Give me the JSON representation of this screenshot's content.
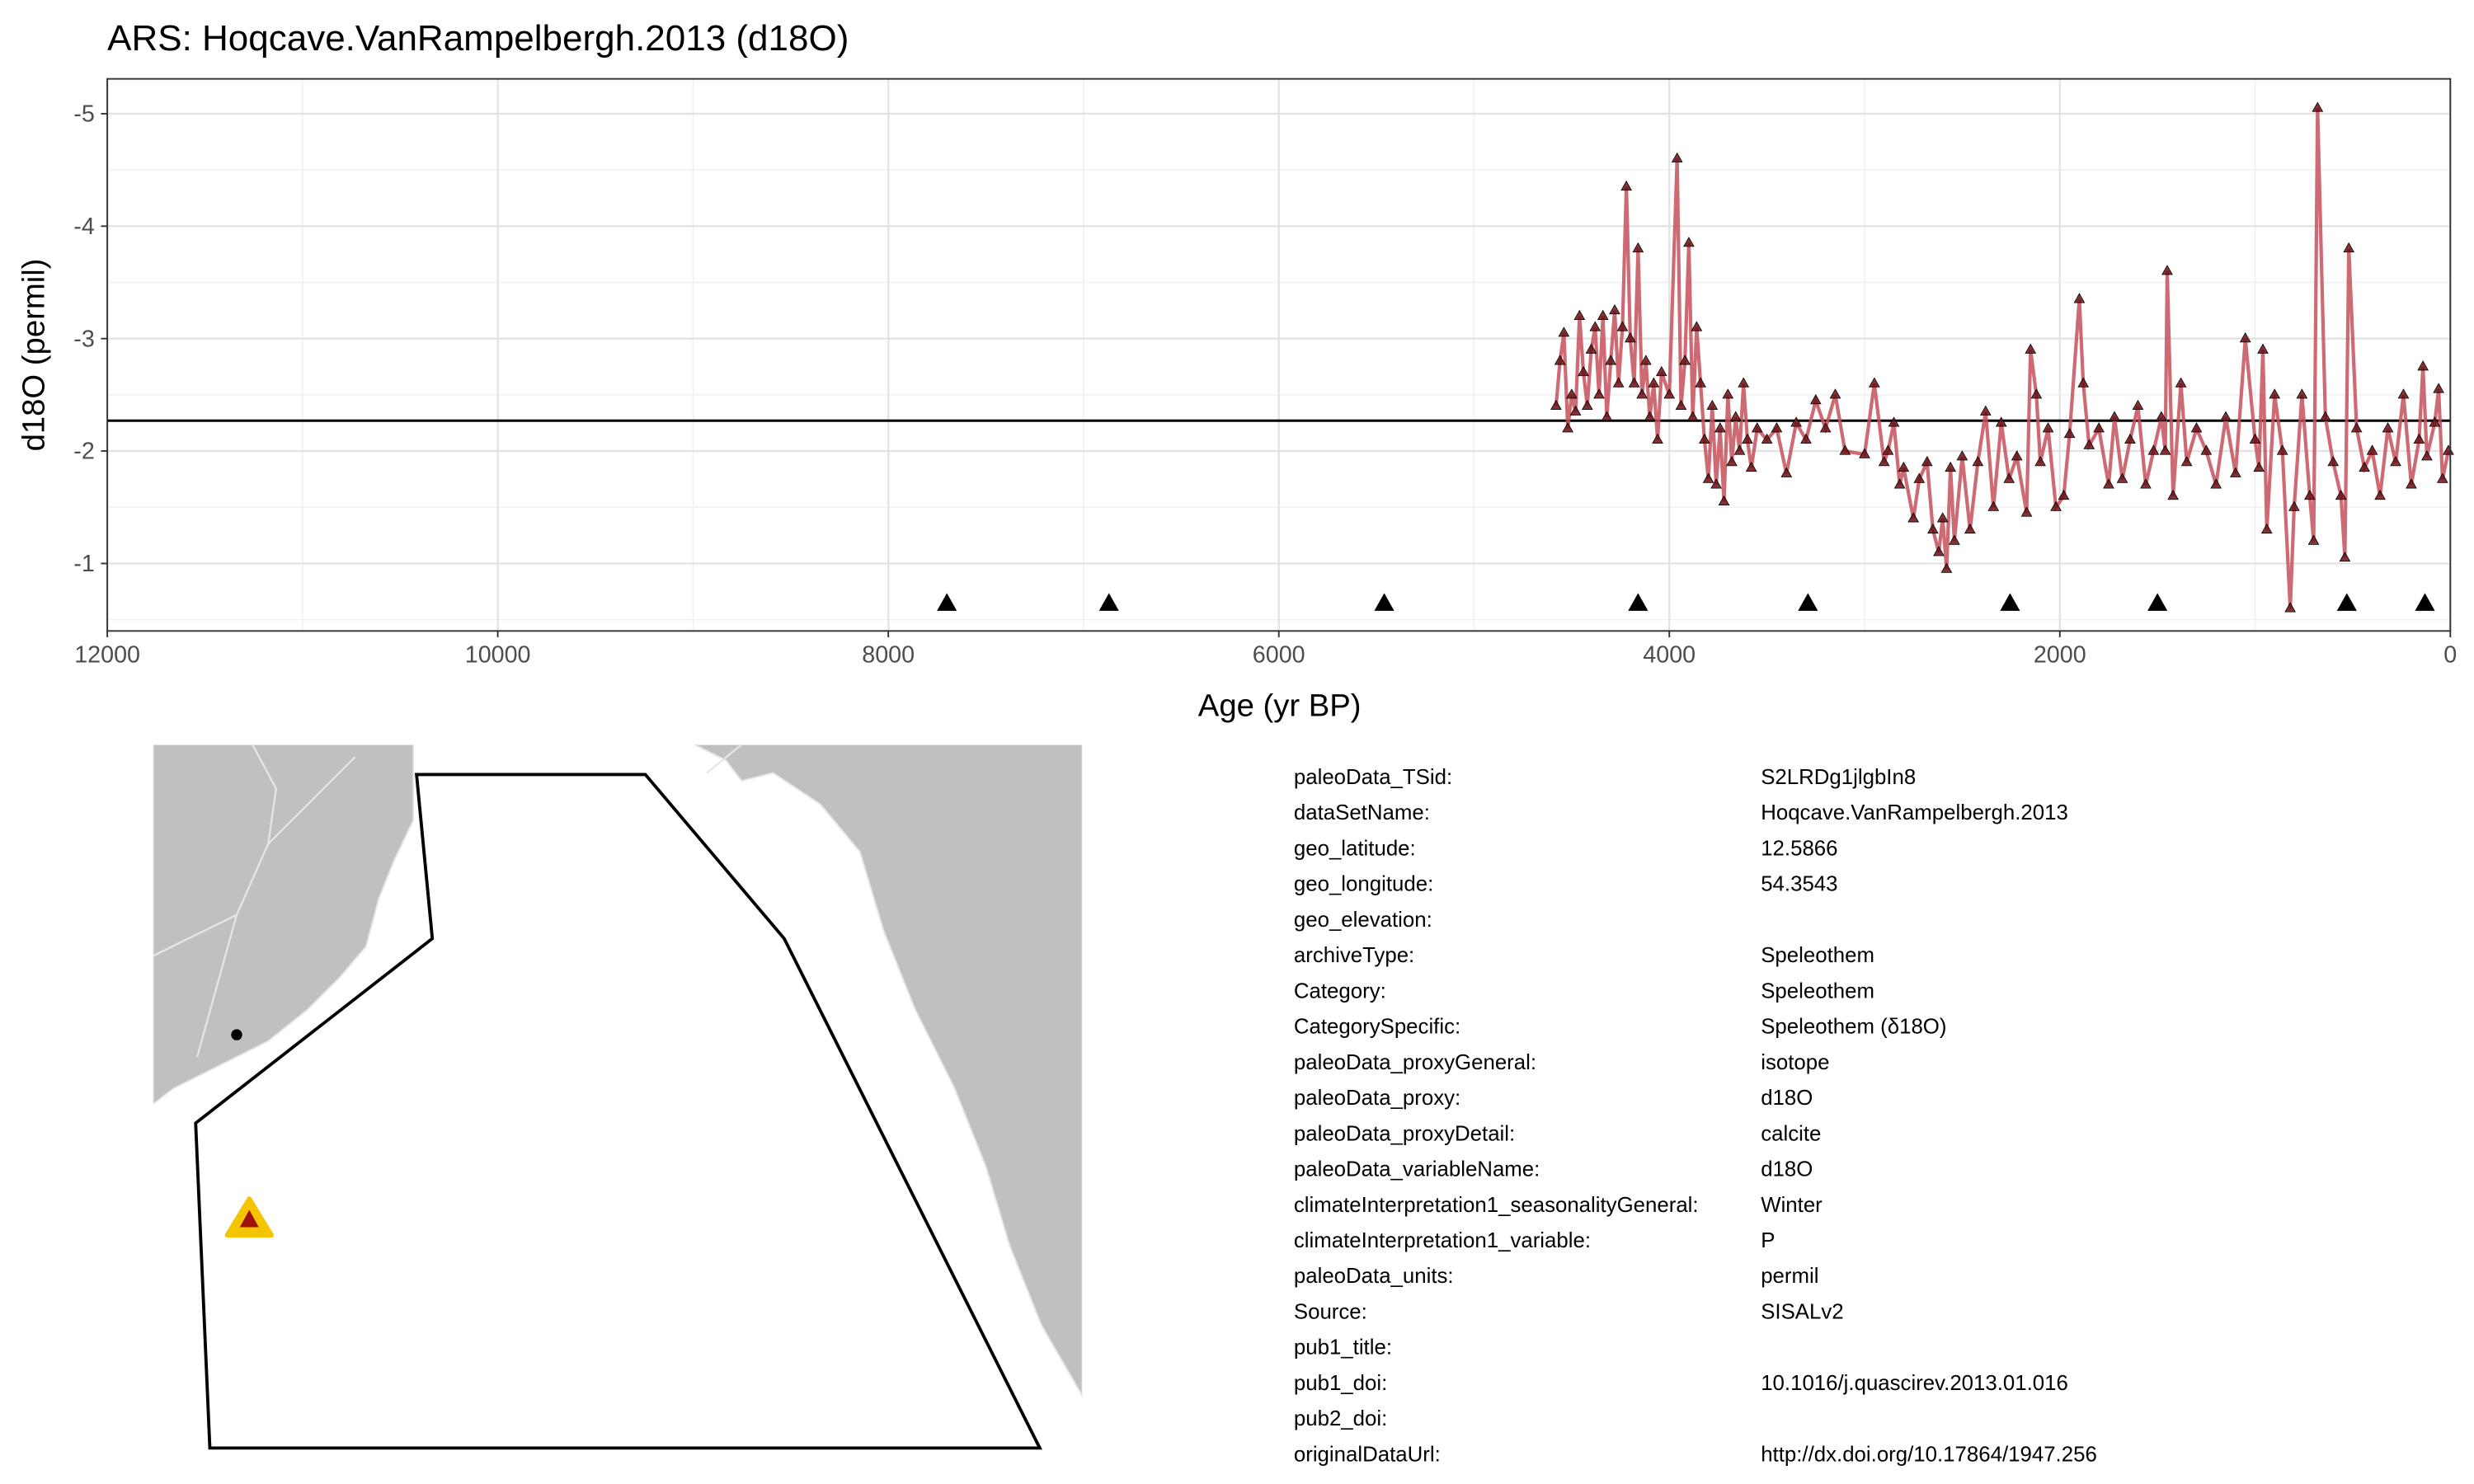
{
  "chart_data": {
    "type": "line",
    "title": "ARS: Hoqcave.VanRampelbergh.2013 (d18O)",
    "xlabel": "Age (yr BP)",
    "ylabel": "d18O (permil)",
    "x": [
      4580,
      4560,
      4540,
      4520,
      4500,
      4480,
      4460,
      4440,
      4420,
      4400,
      4380,
      4360,
      4340,
      4320,
      4300,
      4280,
      4260,
      4240,
      4220,
      4200,
      4180,
      4160,
      4140,
      4120,
      4100,
      4080,
      4060,
      4040,
      4000,
      3960,
      3940,
      3920,
      3900,
      3880,
      3860,
      3840,
      3820,
      3800,
      3780,
      3760,
      3740,
      3720,
      3700,
      3680,
      3660,
      3640,
      3620,
      3600,
      3580,
      3550,
      3500,
      3450,
      3400,
      3350,
      3300,
      3250,
      3200,
      3150,
      3100,
      3000,
      2950,
      2900,
      2880,
      2850,
      2820,
      2800,
      2750,
      2720,
      2680,
      2650,
      2620,
      2600,
      2580,
      2560,
      2540,
      2500,
      2460,
      2420,
      2380,
      2340,
      2300,
      2260,
      2220,
      2170,
      2150,
      2120,
      2100,
      2060,
      2020,
      1980,
      1950,
      1900,
      1880,
      1850,
      1800,
      1750,
      1720,
      1680,
      1640,
      1600,
      1560,
      1520,
      1480,
      1460,
      1450,
      1420,
      1380,
      1350,
      1300,
      1250,
      1200,
      1150,
      1100,
      1050,
      1000,
      980,
      960,
      940,
      900,
      860,
      820,
      800,
      760,
      720,
      700,
      680,
      640,
      600,
      560,
      540,
      520,
      480,
      440,
      400,
      360,
      320,
      280,
      240,
      200,
      160,
      140,
      120,
      80,
      60,
      40,
      10
    ],
    "values": [
      -2.4,
      -2.8,
      -3.05,
      -2.2,
      -2.5,
      -2.35,
      -3.2,
      -2.7,
      -2.4,
      -2.9,
      -3.1,
      -2.5,
      -3.2,
      -2.3,
      -2.8,
      -3.25,
      -2.6,
      -3.1,
      -4.35,
      -3.0,
      -2.6,
      -3.8,
      -2.5,
      -2.8,
      -2.3,
      -2.6,
      -2.1,
      -2.7,
      -2.5,
      -4.6,
      -2.4,
      -2.8,
      -3.85,
      -2.3,
      -3.1,
      -2.6,
      -2.1,
      -1.75,
      -2.4,
      -1.7,
      -2.2,
      -1.55,
      -2.5,
      -1.9,
      -2.3,
      -2.0,
      -2.6,
      -2.1,
      -1.85,
      -2.2,
      -2.1,
      -2.2,
      -1.8,
      -2.25,
      -2.1,
      -2.45,
      -2.2,
      -2.5,
      -2.0,
      -1.97,
      -2.6,
      -1.9,
      -2.0,
      -2.25,
      -1.7,
      -1.85,
      -1.4,
      -1.75,
      -1.9,
      -1.3,
      -1.1,
      -1.4,
      -0.95,
      -1.85,
      -1.2,
      -1.95,
      -1.3,
      -1.9,
      -2.35,
      -1.5,
      -2.25,
      -1.75,
      -1.95,
      -1.45,
      -2.9,
      -2.5,
      -1.9,
      -2.2,
      -1.5,
      -1.6,
      -2.15,
      -3.35,
      -2.6,
      -2.05,
      -2.2,
      -1.7,
      -2.3,
      -1.75,
      -2.1,
      -2.4,
      -1.7,
      -2.0,
      -2.3,
      -2.0,
      -3.6,
      -1.6,
      -2.6,
      -1.9,
      -2.2,
      -2.0,
      -1.7,
      -2.3,
      -1.8,
      -3.0,
      -2.1,
      -1.85,
      -2.9,
      -1.3,
      -2.5,
      -2.0,
      -0.6,
      -1.5,
      -2.5,
      -1.6,
      -1.2,
      -5.05,
      -2.3,
      -1.9,
      -1.6,
      -1.05,
      -3.8,
      -2.2,
      -1.85,
      -2.0,
      -1.6,
      -2.2,
      -1.9,
      -2.5,
      -1.7,
      -2.1,
      -2.75,
      -1.95,
      -2.25,
      -2.55,
      -1.75,
      -2.0
    ],
    "color": "#c4505b",
    "marker_color": "#6b0f14",
    "mean": -2.27,
    "chron_ages": [
      7700,
      6870,
      5460,
      4160,
      3290,
      2255,
      1500,
      530,
      130
    ],
    "xlim": [
      12000,
      0
    ],
    "ylim": [
      -0.4,
      -5.31
    ],
    "xticks": [
      12000,
      10000,
      8000,
      6000,
      4000,
      2000,
      0
    ],
    "x_minor_ticks": [
      11000,
      9000,
      7000,
      5000,
      3000,
      1000
    ],
    "yticks": [
      -5,
      -4,
      -3,
      -2,
      -1
    ],
    "y_minor_ticks": [
      -4.5,
      -3.5,
      -2.5,
      -1.5,
      -0.5
    ],
    "grid": true
  },
  "metadata": {
    "rows": [
      {
        "key": "paleoData_TSid:",
        "value": "S2LRDg1jlgbIn8"
      },
      {
        "key": "dataSetName:",
        "value": "Hoqcave.VanRampelbergh.2013"
      },
      {
        "key": "geo_latitude:",
        "value": "12.5866"
      },
      {
        "key": "geo_longitude:",
        "value": "54.3543"
      },
      {
        "key": "geo_elevation:"
      },
      {
        "key": "archiveType:",
        "value": "Speleothem"
      },
      {
        "key": "Category:",
        "value": "Speleothem"
      },
      {
        "key": "CategorySpecific:",
        "value": "Speleothem (δ18O)"
      },
      {
        "key": "paleoData_proxyGeneral:",
        "value": "isotope"
      },
      {
        "key": "paleoData_proxy:",
        "value": "d18O"
      },
      {
        "key": "paleoData_proxyDetail:",
        "value": "calcite"
      },
      {
        "key": "paleoData_variableName:",
        "value": "d18O"
      },
      {
        "key": "climateInterpretation1_seasonalityGeneral:",
        "value": "Winter"
      },
      {
        "key": "climateInterpretation1_variable:",
        "value": "P"
      },
      {
        "key": "paleoData_units:",
        "value": "permil"
      },
      {
        "key": "Source:",
        "value": "SISALv2"
      },
      {
        "key": "pub1_title:"
      },
      {
        "key": "pub1_doi:",
        "value": "10.1016/j.quascirev.2013.01.016"
      },
      {
        "key": "pub2_doi:"
      },
      {
        "key": "originalDataUrl:",
        "value": "http://dx.doi.org/10.17864/1947.256"
      }
    ]
  }
}
